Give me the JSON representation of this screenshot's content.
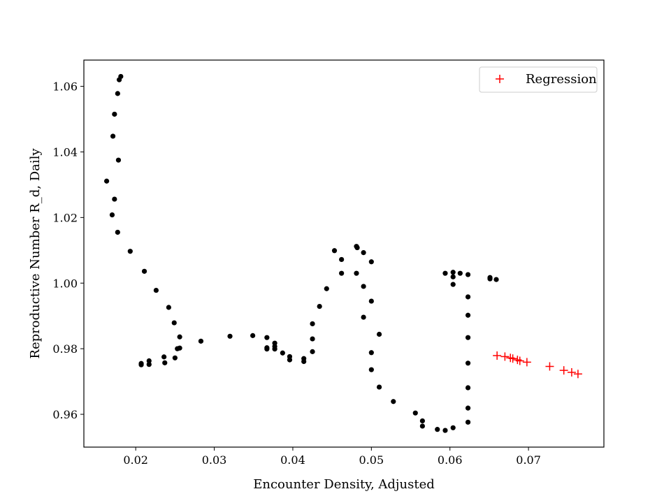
{
  "chart_data": {
    "type": "scatter",
    "xlabel": "Encounter Density, Adjusted",
    "ylabel": "Reproductive Number R_d, Daily",
    "xlim": [
      0.0134,
      0.0796
    ],
    "ylim": [
      0.95,
      1.068
    ],
    "x_ticks": [
      0.02,
      0.03,
      0.04,
      0.05,
      0.06,
      0.07
    ],
    "x_tick_labels": [
      "0.02",
      "0.03",
      "0.04",
      "0.05",
      "0.06",
      "0.07"
    ],
    "y_ticks": [
      0.96,
      0.98,
      1.0,
      1.02,
      1.04,
      1.06
    ],
    "y_tick_labels": [
      "0.96",
      "0.98",
      "1.00",
      "1.02",
      "1.04",
      "1.06"
    ],
    "grid": false,
    "legend": {
      "placement": "top-right",
      "entries": [
        "Regression"
      ]
    },
    "series": [
      {
        "marker": "circle",
        "color": "#000000",
        "points": [
          [
            0.0181,
            1.063
          ],
          [
            0.0179,
            1.062
          ],
          [
            0.0177,
            1.0578
          ],
          [
            0.0173,
            1.0515
          ],
          [
            0.0171,
            1.0448
          ],
          [
            0.0178,
            1.0375
          ],
          [
            0.0163,
            1.0311
          ],
          [
            0.0173,
            1.0256
          ],
          [
            0.017,
            1.0208
          ],
          [
            0.0177,
            1.0155
          ],
          [
            0.0193,
            1.0097
          ],
          [
            0.0211,
            1.0036
          ],
          [
            0.0226,
            0.9978
          ],
          [
            0.0242,
            0.9926
          ],
          [
            0.0249,
            0.9879
          ],
          [
            0.0256,
            0.9836
          ],
          [
            0.0256,
            0.9802
          ],
          [
            0.0253,
            0.98
          ],
          [
            0.025,
            0.9772
          ],
          [
            0.0236,
            0.9775
          ],
          [
            0.0237,
            0.9757
          ],
          [
            0.0217,
            0.9763
          ],
          [
            0.0217,
            0.9752
          ],
          [
            0.0207,
            0.9755
          ],
          [
            0.0207,
            0.9751
          ],
          [
            0.0283,
            0.9823
          ],
          [
            0.032,
            0.9838
          ],
          [
            0.0349,
            0.984
          ],
          [
            0.0367,
            0.9834
          ],
          [
            0.0377,
            0.9817
          ],
          [
            0.0377,
            0.9807
          ],
          [
            0.0367,
            0.9803
          ],
          [
            0.0367,
            0.9799
          ],
          [
            0.0377,
            0.9799
          ],
          [
            0.0387,
            0.9787
          ],
          [
            0.0396,
            0.9776
          ],
          [
            0.0396,
            0.9766
          ],
          [
            0.0414,
            0.977
          ],
          [
            0.0414,
            0.9761
          ],
          [
            0.0425,
            0.9791
          ],
          [
            0.0425,
            0.983
          ],
          [
            0.0425,
            0.9876
          ],
          [
            0.0434,
            0.9929
          ],
          [
            0.0443,
            0.9983
          ],
          [
            0.0453,
            1.0099
          ],
          [
            0.0462,
            1.0072
          ],
          [
            0.0462,
            1.003
          ],
          [
            0.0481,
            1.0112
          ],
          [
            0.0482,
            1.0108
          ],
          [
            0.049,
            1.0093
          ],
          [
            0.05,
            1.0065
          ],
          [
            0.0481,
            1.003
          ],
          [
            0.049,
            0.999
          ],
          [
            0.05,
            0.9945
          ],
          [
            0.049,
            0.9896
          ],
          [
            0.051,
            0.9844
          ],
          [
            0.05,
            0.9788
          ],
          [
            0.05,
            0.9736
          ],
          [
            0.051,
            0.9683
          ],
          [
            0.0528,
            0.9639
          ],
          [
            0.0556,
            0.9604
          ],
          [
            0.0565,
            0.958
          ],
          [
            0.0565,
            0.9564
          ],
          [
            0.0584,
            0.9554
          ],
          [
            0.0594,
            0.9551
          ],
          [
            0.0604,
            0.9559
          ],
          [
            0.0623,
            0.9576
          ],
          [
            0.0623,
            0.9619
          ],
          [
            0.0623,
            0.9681
          ],
          [
            0.0623,
            0.9756
          ],
          [
            0.0623,
            0.9834
          ],
          [
            0.0623,
            0.9902
          ],
          [
            0.0623,
            0.9958
          ],
          [
            0.0623,
            1.0026
          ],
          [
            0.0613,
            1.003
          ],
          [
            0.0604,
            1.0033
          ],
          [
            0.0594,
            1.003
          ],
          [
            0.0604,
            1.0019
          ],
          [
            0.0604,
            0.9996
          ],
          [
            0.0651,
            1.0017
          ],
          [
            0.0651,
            1.0013
          ],
          [
            0.0659,
            1.0011
          ]
        ]
      },
      {
        "name": "Regression",
        "marker": "plus",
        "color": "#ff0000",
        "points": [
          [
            0.066,
            0.9779
          ],
          [
            0.067,
            0.9776
          ],
          [
            0.0677,
            0.9772
          ],
          [
            0.068,
            0.977
          ],
          [
            0.0686,
            0.9766
          ],
          [
            0.0689,
            0.9763
          ],
          [
            0.0698,
            0.9759
          ],
          [
            0.0727,
            0.9746
          ],
          [
            0.0745,
            0.9734
          ],
          [
            0.0755,
            0.9728
          ],
          [
            0.0763,
            0.9723
          ]
        ]
      }
    ]
  }
}
